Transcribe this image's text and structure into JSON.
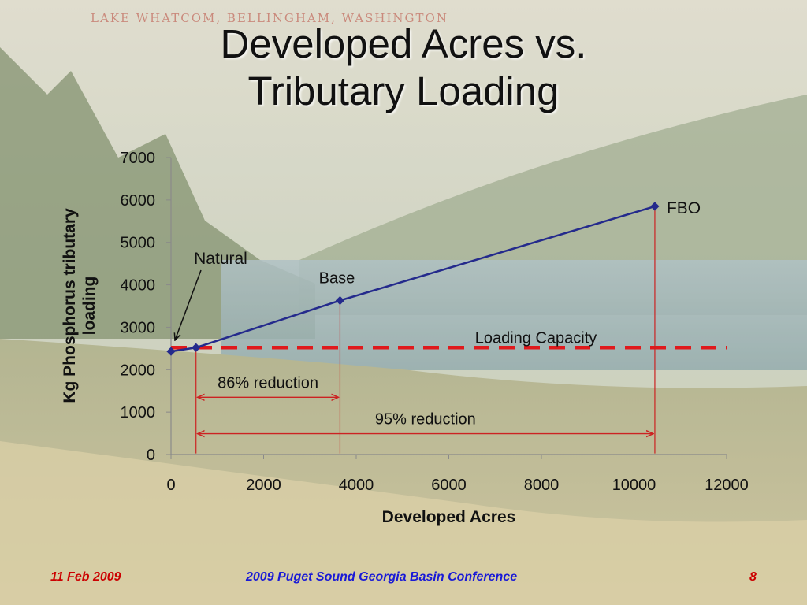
{
  "slide": {
    "title_line1": "Developed Acres vs.",
    "title_line2": "Tributary Loading",
    "photo_caption": "LAKE WHATCOM, BELLINGHAM, WASHINGTON",
    "footer_date": "11 Feb 2009",
    "footer_conference": "2009 Puget Sound Georgia Basin Conference",
    "footer_page": "8"
  },
  "colors": {
    "series_line": "#242a8c",
    "capacity_line": "#e0191c",
    "reduction_arrows": "#cc2222",
    "footer_blue": "#1a1ad6",
    "footer_red": "#cc0000"
  },
  "chart_data": {
    "type": "line",
    "xlabel": "Developed Acres",
    "ylabel_line1": "Kg Phosphorus tributary",
    "ylabel_line2": "loading",
    "xlim": [
      0,
      12000
    ],
    "ylim": [
      0,
      7000
    ],
    "xticks": [
      0,
      2000,
      4000,
      6000,
      8000,
      10000,
      12000
    ],
    "yticks": [
      0,
      1000,
      2000,
      3000,
      4000,
      5000,
      6000,
      7000
    ],
    "grid": false,
    "series": [
      {
        "points": [
          {
            "x": 0,
            "y": 2430,
            "label": ""
          },
          {
            "x": 540,
            "y": 2520,
            "label": "Natural"
          },
          {
            "x": 3650,
            "y": 3630,
            "label": "Base"
          },
          {
            "x": 10450,
            "y": 5850,
            "label": "FBO"
          }
        ]
      }
    ],
    "reference_line": {
      "y": 2520,
      "label": "Loading Capacity",
      "style": "dashed"
    },
    "reductions": [
      {
        "label": "86% reduction",
        "x_from": 540,
        "x_to": 3650,
        "y": 1350
      },
      {
        "label": "95% reduction",
        "x_from": 540,
        "x_to": 10450,
        "y": 490
      }
    ]
  }
}
